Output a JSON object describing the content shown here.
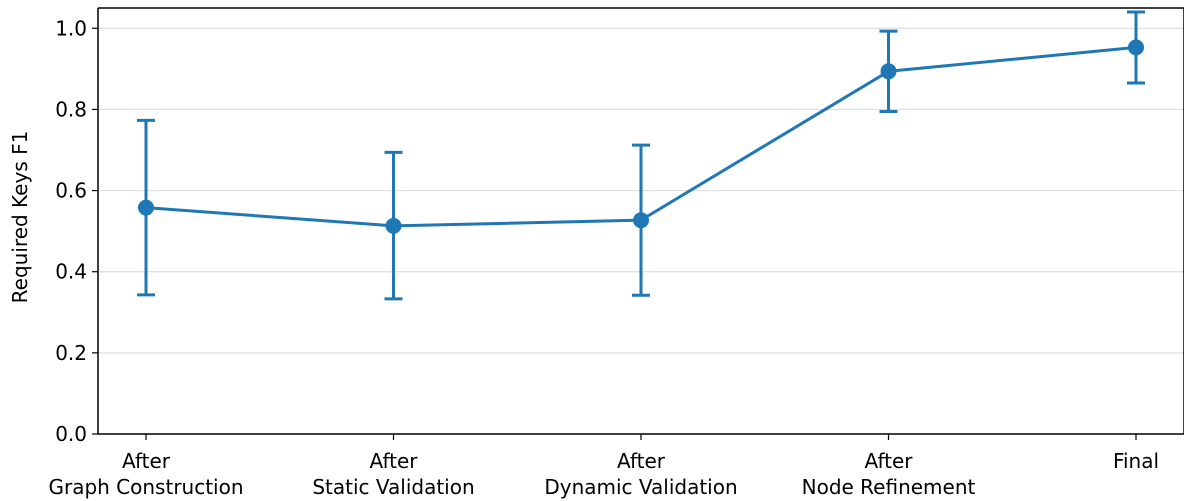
{
  "chart_data": {
    "type": "line",
    "title": "",
    "xlabel": "",
    "ylabel": "Required Keys F1",
    "ylim": [
      0.0,
      1.05
    ],
    "yticks": [
      0.0,
      0.2,
      0.4,
      0.6,
      0.8,
      1.0
    ],
    "ytick_labels": [
      "0.0",
      "0.2",
      "0.4",
      "0.6",
      "0.8",
      "1.0"
    ],
    "grid": "horizontal",
    "categories": [
      [
        "After",
        "Graph Construction"
      ],
      [
        "After",
        "Static Validation"
      ],
      [
        "After",
        "Dynamic Validation"
      ],
      [
        "After",
        "Node Refinement"
      ],
      [
        "Final"
      ]
    ],
    "series": [
      {
        "values": [
          0.558,
          0.513,
          0.527,
          0.894,
          0.953
        ],
        "error_low": [
          0.343,
          0.333,
          0.342,
          0.795,
          0.865
        ],
        "error_high": [
          0.773,
          0.694,
          0.712,
          0.993,
          1.04
        ],
        "color": "#1f77b4"
      }
    ]
  }
}
